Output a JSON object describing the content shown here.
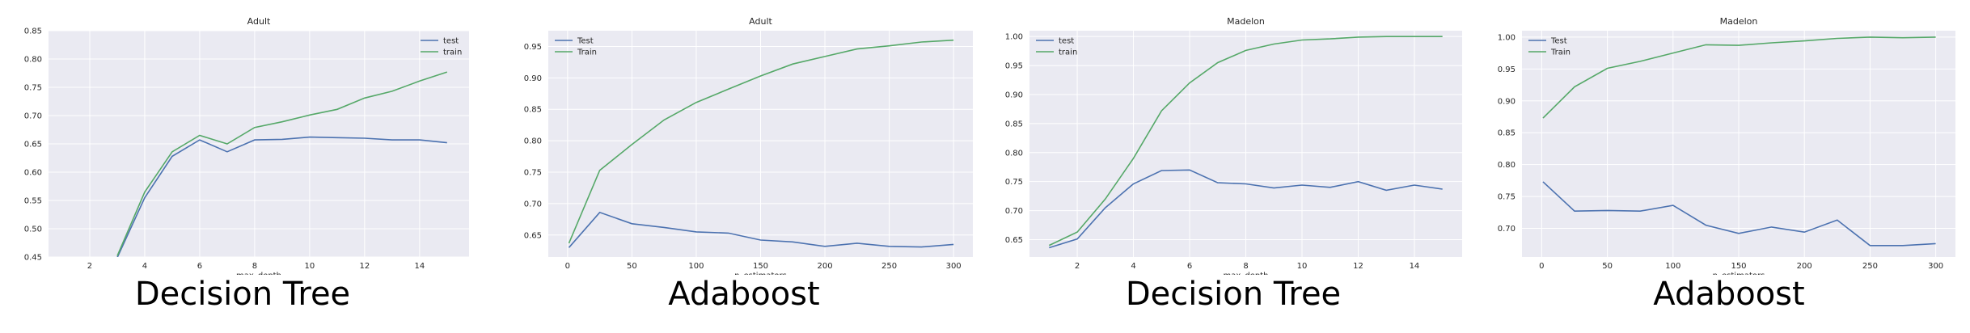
{
  "chart_data": [
    {
      "type": "line",
      "title": "Adult",
      "caption": "Decision Tree",
      "xlabel": "max_depth",
      "ylabel": "",
      "xlim": [
        0.5,
        15.8
      ],
      "ylim": [
        0.45,
        0.85
      ],
      "xticks": [
        2,
        4,
        6,
        8,
        10,
        12,
        14
      ],
      "yticks": [
        0.45,
        0.5,
        0.55,
        0.6,
        0.65,
        0.7,
        0.75,
        0.8,
        0.85
      ],
      "ytick_decimals": 2,
      "legend": "top-right",
      "grid": true,
      "series": [
        {
          "name": "test",
          "color": "#4c72b0",
          "x": [
            3,
            4,
            5,
            6,
            7,
            8,
            9,
            10,
            11,
            12,
            13,
            14,
            15
          ],
          "y": [
            0.449,
            0.555,
            0.628,
            0.657,
            0.636,
            0.657,
            0.658,
            0.662,
            0.661,
            0.66,
            0.657,
            0.657,
            0.652
          ]
        },
        {
          "name": "train",
          "color": "#55a868",
          "x": [
            3,
            4,
            5,
            6,
            7,
            8,
            9,
            10,
            11,
            12,
            13,
            14,
            15
          ],
          "y": [
            0.452,
            0.565,
            0.636,
            0.665,
            0.65,
            0.679,
            0.689,
            0.701,
            0.711,
            0.731,
            0.743,
            0.761,
            0.777
          ]
        }
      ]
    },
    {
      "type": "line",
      "title": "Adult",
      "caption": "Adaboost",
      "xlabel": "n_estimators",
      "ylabel": "",
      "xlim": [
        -15,
        315
      ],
      "ylim": [
        0.615,
        0.975
      ],
      "xticks": [
        0,
        50,
        100,
        150,
        200,
        250,
        300
      ],
      "yticks": [
        0.65,
        0.7,
        0.75,
        0.8,
        0.85,
        0.9,
        0.95
      ],
      "ytick_decimals": 2,
      "legend": "top-left",
      "grid": true,
      "series": [
        {
          "name": "Test",
          "color": "#4c72b0",
          "x": [
            1,
            25,
            50,
            75,
            100,
            125,
            150,
            175,
            200,
            225,
            250,
            275,
            300
          ],
          "y": [
            0.63,
            0.686,
            0.668,
            0.662,
            0.655,
            0.653,
            0.642,
            0.639,
            0.632,
            0.637,
            0.632,
            0.631,
            0.635
          ]
        },
        {
          "name": "Train",
          "color": "#55a868",
          "x": [
            1,
            25,
            50,
            75,
            100,
            125,
            150,
            175,
            200,
            225,
            250,
            275,
            300
          ],
          "y": [
            0.637,
            0.753,
            0.794,
            0.833,
            0.861,
            0.882,
            0.903,
            0.922,
            0.934,
            0.946,
            0.951,
            0.957,
            0.96
          ]
        }
      ]
    },
    {
      "type": "line",
      "title": "Madelon",
      "caption": "Decision Tree",
      "xlabel": "max_depth",
      "ylabel": "",
      "xlim": [
        0.3,
        15.7
      ],
      "ylim": [
        0.62,
        1.01
      ],
      "xticks": [
        2,
        4,
        6,
        8,
        10,
        12,
        14
      ],
      "yticks": [
        0.65,
        0.7,
        0.75,
        0.8,
        0.85,
        0.9,
        0.95,
        1.0
      ],
      "ytick_decimals": 2,
      "legend": "top-left",
      "grid": true,
      "series": [
        {
          "name": "test",
          "color": "#4c72b0",
          "x": [
            1,
            2,
            3,
            4,
            5,
            6,
            7,
            8,
            9,
            10,
            11,
            12,
            13,
            14,
            15
          ],
          "y": [
            0.636,
            0.651,
            0.705,
            0.746,
            0.769,
            0.77,
            0.748,
            0.746,
            0.739,
            0.744,
            0.74,
            0.75,
            0.735,
            0.744,
            0.737
          ]
        },
        {
          "name": "train",
          "color": "#55a868",
          "x": [
            1,
            2,
            3,
            4,
            5,
            6,
            7,
            8,
            9,
            10,
            11,
            12,
            13,
            14,
            15
          ],
          "y": [
            0.64,
            0.663,
            0.72,
            0.79,
            0.872,
            0.92,
            0.955,
            0.976,
            0.987,
            0.994,
            0.996,
            0.999,
            1.0,
            1.0,
            1.0
          ]
        }
      ]
    },
    {
      "type": "line",
      "title": "Madelon",
      "caption": "Adaboost",
      "xlabel": "n_estimators",
      "ylabel": "",
      "xlim": [
        -15,
        315
      ],
      "ylim": [
        0.655,
        1.01
      ],
      "xticks": [
        0,
        50,
        100,
        150,
        200,
        250,
        300
      ],
      "yticks": [
        0.7,
        0.75,
        0.8,
        0.85,
        0.9,
        0.95,
        1.0
      ],
      "ytick_decimals": 2,
      "legend": "top-left",
      "grid": true,
      "series": [
        {
          "name": "Test",
          "color": "#4c72b0",
          "x": [
            1,
            25,
            50,
            75,
            100,
            125,
            150,
            175,
            200,
            225,
            250,
            275,
            300
          ],
          "y": [
            0.773,
            0.727,
            0.728,
            0.727,
            0.736,
            0.705,
            0.692,
            0.702,
            0.694,
            0.713,
            0.673,
            0.673,
            0.676
          ]
        },
        {
          "name": "Train",
          "color": "#55a868",
          "x": [
            1,
            25,
            50,
            75,
            100,
            125,
            150,
            175,
            200,
            225,
            250,
            275,
            300
          ],
          "y": [
            0.873,
            0.922,
            0.951,
            0.962,
            0.975,
            0.988,
            0.987,
            0.991,
            0.994,
            0.998,
            1.0,
            0.999,
            1.0
          ]
        }
      ]
    }
  ]
}
